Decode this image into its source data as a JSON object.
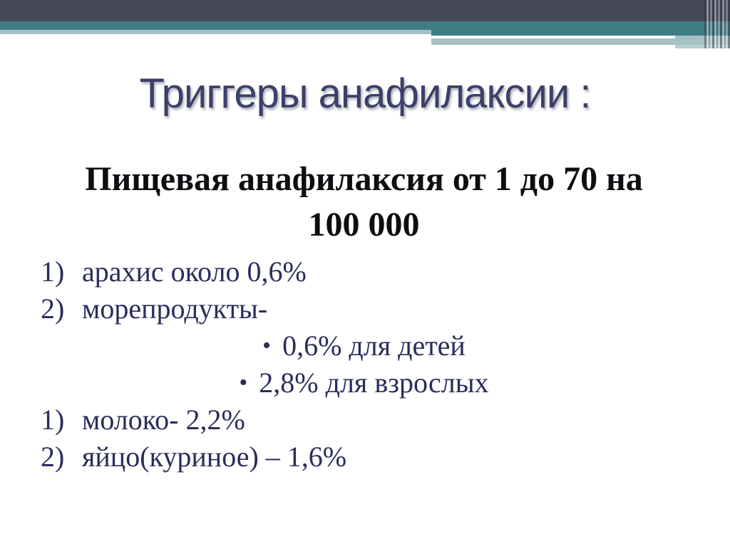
{
  "slide": {
    "title": "Триггеры анафилаксии :",
    "heading": {
      "line1": "Пищевая анафилаксия от 1 до 70 на",
      "line2": "100 000"
    },
    "list": {
      "items": [
        {
          "marker": "1)",
          "text": "арахис около 0,6%"
        },
        {
          "marker": "2)",
          "text": "морепродукты-"
        },
        {
          "marker": "•",
          "text": "0,6% для детей"
        },
        {
          "marker": "•",
          "text": "2,8% для взрослых"
        },
        {
          "marker": "1)",
          "text": "молоко- 2,2%"
        },
        {
          "marker": "2)",
          "text": "яйцо(куриное) – 1,6%"
        }
      ]
    },
    "colors": {
      "header_dark_slate": "#454857",
      "header_teal": "#3f7d85",
      "header_sage": "#a5c1c4",
      "title_text": "#3c4069",
      "heading_text": "#0d0d12",
      "list_text": "#2a2d5c",
      "background": "#ffffff"
    }
  }
}
